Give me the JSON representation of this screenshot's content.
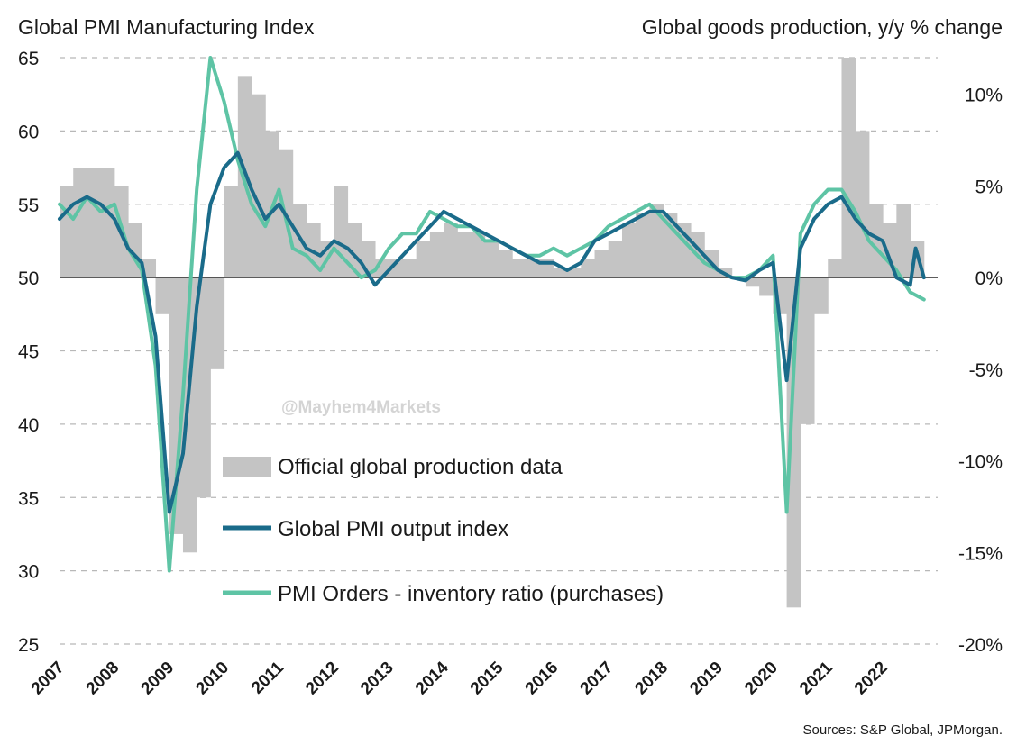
{
  "chart_data": {
    "type": "line",
    "title_left": "Global PMI Manufacturing Index",
    "title_right": "Global goods production, y/y % change",
    "source": "Sources: S&P Global, JPMorgan.",
    "watermark": "@Mayhem4Markets",
    "left_axis": {
      "range": [
        25,
        65
      ],
      "ticks": [
        "25",
        "30",
        "35",
        "40",
        "45",
        "50",
        "55",
        "60",
        "65"
      ]
    },
    "right_axis": {
      "range": [
        -20,
        12
      ],
      "ticks": [
        "-20%",
        "-15%",
        "-10%",
        "-5%",
        "0%",
        "5%",
        "10%"
      ]
    },
    "x_axis": {
      "range": [
        2007,
        2023
      ],
      "ticks": [
        "2007",
        "2008",
        "2009",
        "2010",
        "2011",
        "2012",
        "2013",
        "2014",
        "2015",
        "2016",
        "2017",
        "2018",
        "2019",
        "2020",
        "2021",
        "2022"
      ]
    },
    "gridlines": "dashed horizontal",
    "legend": {
      "position": "center-left",
      "entries": [
        {
          "label": "Official global production data",
          "color": "#c4c4c4",
          "kind": "bar"
        },
        {
          "label": "Global PMI output index",
          "color": "#1a6b8a",
          "kind": "line"
        },
        {
          "label": "PMI Orders - inventory ratio (purchases)",
          "color": "#5ec4a5",
          "kind": "line"
        }
      ]
    },
    "series": [
      {
        "name": "Official global production data",
        "axis": "right",
        "color": "#c4c4c4",
        "x": [
          2007.0,
          2007.25,
          2007.5,
          2007.75,
          2008.0,
          2008.25,
          2008.5,
          2008.75,
          2009.0,
          2009.25,
          2009.5,
          2009.75,
          2010.0,
          2010.25,
          2010.5,
          2010.75,
          2011.0,
          2011.25,
          2011.5,
          2011.75,
          2012.0,
          2012.25,
          2012.5,
          2012.75,
          2013.0,
          2013.25,
          2013.5,
          2013.75,
          2014.0,
          2014.25,
          2014.5,
          2014.75,
          2015.0,
          2015.25,
          2015.5,
          2015.75,
          2016.0,
          2016.25,
          2016.5,
          2016.75,
          2017.0,
          2017.25,
          2017.5,
          2017.75,
          2018.0,
          2018.25,
          2018.5,
          2018.75,
          2019.0,
          2019.25,
          2019.5,
          2019.75,
          2020.0,
          2020.25,
          2020.5,
          2020.75,
          2021.0,
          2021.25,
          2021.5,
          2021.75,
          2022.0,
          2022.25,
          2022.5
        ],
        "values": [
          5.0,
          6.0,
          6.0,
          6.0,
          5.0,
          3.0,
          1.0,
          -2.0,
          -14.0,
          -15.0,
          -12.0,
          -5.0,
          5.0,
          11.0,
          10.0,
          8.0,
          7.0,
          4.0,
          3.0,
          2.0,
          5.0,
          3.0,
          2.0,
          1.0,
          1.0,
          1.0,
          2.0,
          2.5,
          3.0,
          2.5,
          2.5,
          2.0,
          1.5,
          1.0,
          1.0,
          1.0,
          0.5,
          0.5,
          1.0,
          1.5,
          2.0,
          3.0,
          3.5,
          4.0,
          3.5,
          3.0,
          2.5,
          1.5,
          0.5,
          0.0,
          -0.5,
          -1.0,
          -2.0,
          -18.0,
          -8.0,
          -2.0,
          1.0,
          12.0,
          8.0,
          4.0,
          3.0,
          4.0,
          2.0
        ]
      },
      {
        "name": "Global PMI output index",
        "axis": "left",
        "color": "#1a6b8a",
        "x": [
          2007.0,
          2007.25,
          2007.5,
          2007.75,
          2008.0,
          2008.25,
          2008.5,
          2008.75,
          2009.0,
          2009.25,
          2009.5,
          2009.75,
          2010.0,
          2010.25,
          2010.5,
          2010.75,
          2011.0,
          2011.25,
          2011.5,
          2011.75,
          2012.0,
          2012.25,
          2012.5,
          2012.75,
          2013.0,
          2013.25,
          2013.5,
          2013.75,
          2014.0,
          2014.25,
          2014.5,
          2014.75,
          2015.0,
          2015.25,
          2015.5,
          2015.75,
          2016.0,
          2016.25,
          2016.5,
          2016.75,
          2017.0,
          2017.25,
          2017.5,
          2017.75,
          2018.0,
          2018.25,
          2018.5,
          2018.75,
          2019.0,
          2019.25,
          2019.5,
          2019.75,
          2020.0,
          2020.25,
          2020.5,
          2020.75,
          2021.0,
          2021.25,
          2021.5,
          2021.75,
          2022.0,
          2022.25,
          2022.5,
          2022.6,
          2022.75
        ],
        "values": [
          54.0,
          55.0,
          55.5,
          55.0,
          54.0,
          52.0,
          51.0,
          46.0,
          34.0,
          38.0,
          48.0,
          55.0,
          57.5,
          58.5,
          56.0,
          54.0,
          55.0,
          53.5,
          52.0,
          51.5,
          52.5,
          52.0,
          51.0,
          49.5,
          50.5,
          51.5,
          52.5,
          53.5,
          54.5,
          54.0,
          53.5,
          53.0,
          52.5,
          52.0,
          51.5,
          51.0,
          51.0,
          50.5,
          51.0,
          52.5,
          53.0,
          53.5,
          54.0,
          54.5,
          54.5,
          53.5,
          52.5,
          51.5,
          50.5,
          50.0,
          49.8,
          50.5,
          51.0,
          43.0,
          52.0,
          54.0,
          55.0,
          55.5,
          54.0,
          53.0,
          52.5,
          50.0,
          49.5,
          52.0,
          50.0
        ]
      },
      {
        "name": "PMI Orders - inventory ratio (purchases)",
        "axis": "left",
        "color": "#5ec4a5",
        "x": [
          2007.0,
          2007.25,
          2007.5,
          2007.75,
          2008.0,
          2008.25,
          2008.5,
          2008.75,
          2009.0,
          2009.25,
          2009.5,
          2009.75,
          2010.0,
          2010.25,
          2010.5,
          2010.75,
          2011.0,
          2011.25,
          2011.5,
          2011.75,
          2012.0,
          2012.25,
          2012.5,
          2012.75,
          2013.0,
          2013.25,
          2013.5,
          2013.75,
          2014.0,
          2014.25,
          2014.5,
          2014.75,
          2015.0,
          2015.25,
          2015.5,
          2015.75,
          2016.0,
          2016.25,
          2016.5,
          2016.75,
          2017.0,
          2017.25,
          2017.5,
          2017.75,
          2018.0,
          2018.25,
          2018.5,
          2018.75,
          2019.0,
          2019.25,
          2019.5,
          2019.75,
          2020.0,
          2020.25,
          2020.5,
          2020.75,
          2021.0,
          2021.25,
          2021.5,
          2021.75,
          2022.0,
          2022.25,
          2022.5,
          2022.75
        ],
        "values": [
          55.0,
          54.0,
          55.5,
          54.5,
          55.0,
          52.0,
          50.5,
          44.0,
          30.0,
          42.0,
          56.0,
          65.0,
          62.0,
          58.0,
          55.0,
          53.5,
          56.0,
          52.0,
          51.5,
          50.5,
          52.0,
          51.0,
          50.0,
          50.5,
          52.0,
          53.0,
          53.0,
          54.5,
          54.0,
          53.5,
          53.5,
          52.5,
          52.5,
          52.0,
          51.5,
          51.5,
          52.0,
          51.5,
          52.0,
          52.5,
          53.5,
          54.0,
          54.5,
          55.0,
          54.0,
          53.0,
          52.0,
          51.0,
          50.5,
          50.0,
          50.0,
          50.5,
          51.5,
          34.0,
          53.0,
          55.0,
          56.0,
          56.0,
          54.5,
          52.5,
          51.5,
          50.5,
          49.0,
          48.5
        ]
      }
    ]
  }
}
